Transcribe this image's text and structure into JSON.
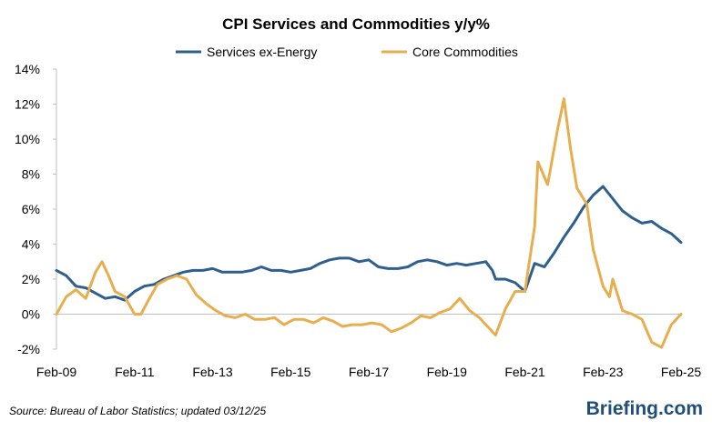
{
  "colors": {
    "services_series": "#2e5f8e",
    "commodities_series": "#e8ae4e",
    "axis": "#bfbfbf",
    "brand": "#1f4e79"
  },
  "chart_data": {
    "type": "line",
    "title": "CPI Services and Commodities y/y%",
    "xlabel": "",
    "ylabel": "",
    "ylim": [
      -2,
      14
    ],
    "y_ticks": [
      "-2%",
      "0%",
      "2%",
      "4%",
      "6%",
      "8%",
      "10%",
      "12%",
      "14%"
    ],
    "y_tick_values": [
      -2,
      0,
      2,
      4,
      6,
      8,
      10,
      12,
      14
    ],
    "x_start": "Feb-09",
    "x_end": "Feb-25",
    "x_ticks": [
      "Feb-09",
      "Feb-11",
      "Feb-13",
      "Feb-15",
      "Feb-17",
      "Feb-19",
      "Feb-21",
      "Feb-23",
      "Feb-25"
    ],
    "grid": false,
    "legend_position": "top-center",
    "series": [
      {
        "name": "Services ex-Energy",
        "points": [
          [
            "2009-02",
            2.5
          ],
          [
            "2009-05",
            2.2
          ],
          [
            "2009-08",
            1.6
          ],
          [
            "2009-11",
            1.5
          ],
          [
            "2010-02",
            1.2
          ],
          [
            "2010-05",
            0.9
          ],
          [
            "2010-08",
            1.0
          ],
          [
            "2010-11",
            0.8
          ],
          [
            "2011-02",
            1.3
          ],
          [
            "2011-05",
            1.6
          ],
          [
            "2011-08",
            1.7
          ],
          [
            "2011-11",
            2.0
          ],
          [
            "2012-02",
            2.2
          ],
          [
            "2012-05",
            2.4
          ],
          [
            "2012-08",
            2.5
          ],
          [
            "2012-11",
            2.5
          ],
          [
            "2013-02",
            2.6
          ],
          [
            "2013-05",
            2.4
          ],
          [
            "2013-08",
            2.4
          ],
          [
            "2013-11",
            2.4
          ],
          [
            "2014-02",
            2.5
          ],
          [
            "2014-05",
            2.7
          ],
          [
            "2014-08",
            2.5
          ],
          [
            "2014-11",
            2.5
          ],
          [
            "2015-02",
            2.4
          ],
          [
            "2015-05",
            2.5
          ],
          [
            "2015-08",
            2.6
          ],
          [
            "2015-11",
            2.9
          ],
          [
            "2016-02",
            3.1
          ],
          [
            "2016-05",
            3.2
          ],
          [
            "2016-08",
            3.2
          ],
          [
            "2016-11",
            3.0
          ],
          [
            "2017-02",
            3.1
          ],
          [
            "2017-05",
            2.7
          ],
          [
            "2017-08",
            2.6
          ],
          [
            "2017-11",
            2.6
          ],
          [
            "2018-02",
            2.7
          ],
          [
            "2018-05",
            3.0
          ],
          [
            "2018-08",
            3.1
          ],
          [
            "2018-11",
            3.0
          ],
          [
            "2019-02",
            2.8
          ],
          [
            "2019-05",
            2.9
          ],
          [
            "2019-08",
            2.8
          ],
          [
            "2019-11",
            2.9
          ],
          [
            "2020-02",
            3.0
          ],
          [
            "2020-04",
            2.5
          ],
          [
            "2020-05",
            2.0
          ],
          [
            "2020-08",
            2.0
          ],
          [
            "2020-11",
            1.8
          ],
          [
            "2021-02",
            1.3
          ],
          [
            "2021-05",
            2.9
          ],
          [
            "2021-08",
            2.7
          ],
          [
            "2021-11",
            3.5
          ],
          [
            "2022-02",
            4.4
          ],
          [
            "2022-05",
            5.2
          ],
          [
            "2022-08",
            6.1
          ],
          [
            "2022-11",
            6.8
          ],
          [
            "2023-02",
            7.3
          ],
          [
            "2023-05",
            6.6
          ],
          [
            "2023-08",
            5.9
          ],
          [
            "2023-11",
            5.5
          ],
          [
            "2024-02",
            5.2
          ],
          [
            "2024-05",
            5.3
          ],
          [
            "2024-08",
            4.9
          ],
          [
            "2024-11",
            4.6
          ],
          [
            "2025-02",
            4.1
          ]
        ]
      },
      {
        "name": "Core Commodities",
        "points": [
          [
            "2009-02",
            0.0
          ],
          [
            "2009-05",
            1.0
          ],
          [
            "2009-08",
            1.4
          ],
          [
            "2009-11",
            0.9
          ],
          [
            "2010-02",
            2.4
          ],
          [
            "2010-04",
            3.0
          ],
          [
            "2010-06",
            2.2
          ],
          [
            "2010-08",
            1.3
          ],
          [
            "2010-11",
            1.0
          ],
          [
            "2011-02",
            0.0
          ],
          [
            "2011-04",
            0.0
          ],
          [
            "2011-06",
            0.7
          ],
          [
            "2011-09",
            1.7
          ],
          [
            "2011-12",
            2.0
          ],
          [
            "2012-03",
            2.2
          ],
          [
            "2012-06",
            2.0
          ],
          [
            "2012-09",
            1.1
          ],
          [
            "2012-12",
            0.6
          ],
          [
            "2013-03",
            0.2
          ],
          [
            "2013-06",
            -0.1
          ],
          [
            "2013-09",
            -0.2
          ],
          [
            "2013-12",
            0.0
          ],
          [
            "2014-03",
            -0.3
          ],
          [
            "2014-06",
            -0.3
          ],
          [
            "2014-09",
            -0.2
          ],
          [
            "2014-12",
            -0.6
          ],
          [
            "2015-03",
            -0.3
          ],
          [
            "2015-06",
            -0.3
          ],
          [
            "2015-09",
            -0.5
          ],
          [
            "2015-12",
            -0.2
          ],
          [
            "2016-03",
            -0.4
          ],
          [
            "2016-06",
            -0.7
          ],
          [
            "2016-09",
            -0.6
          ],
          [
            "2016-12",
            -0.6
          ],
          [
            "2017-03",
            -0.5
          ],
          [
            "2017-06",
            -0.6
          ],
          [
            "2017-09",
            -1.0
          ],
          [
            "2017-12",
            -0.8
          ],
          [
            "2018-03",
            -0.5
          ],
          [
            "2018-06",
            -0.1
          ],
          [
            "2018-09",
            -0.2
          ],
          [
            "2018-12",
            0.1
          ],
          [
            "2019-03",
            0.3
          ],
          [
            "2019-06",
            0.9
          ],
          [
            "2019-09",
            0.2
          ],
          [
            "2019-12",
            -0.2
          ],
          [
            "2020-03",
            -0.8
          ],
          [
            "2020-05",
            -1.2
          ],
          [
            "2020-08",
            0.3
          ],
          [
            "2020-11",
            1.3
          ],
          [
            "2021-02",
            1.3
          ],
          [
            "2021-05",
            5.0
          ],
          [
            "2021-06",
            8.7
          ],
          [
            "2021-09",
            7.4
          ],
          [
            "2021-12",
            10.5
          ],
          [
            "2022-02",
            12.3
          ],
          [
            "2022-04",
            9.5
          ],
          [
            "2022-06",
            7.2
          ],
          [
            "2022-09",
            6.3
          ],
          [
            "2022-11",
            3.7
          ],
          [
            "2023-02",
            1.6
          ],
          [
            "2023-04",
            1.0
          ],
          [
            "2023-05",
            2.0
          ],
          [
            "2023-08",
            0.2
          ],
          [
            "2023-11",
            0.0
          ],
          [
            "2024-02",
            -0.3
          ],
          [
            "2024-05",
            -1.6
          ],
          [
            "2024-08",
            -1.9
          ],
          [
            "2024-11",
            -0.6
          ],
          [
            "2025-02",
            0.0
          ]
        ]
      }
    ]
  },
  "footer": {
    "source": "Source: Bureau of Labor Statistics; updated 03/12/25",
    "brand": "Briefing.com"
  }
}
